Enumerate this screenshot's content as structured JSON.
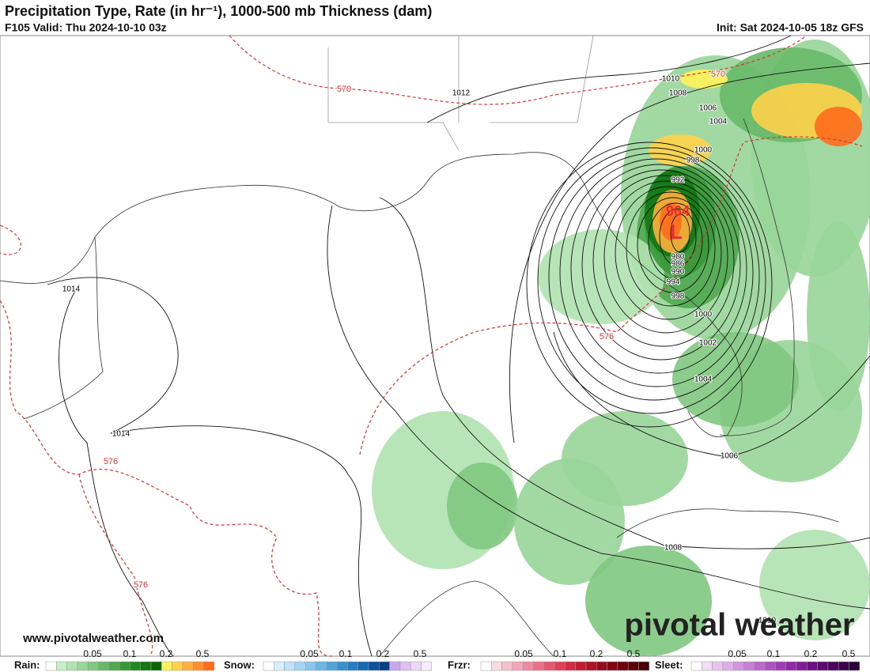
{
  "header": {
    "title": "Precipitation Type, Rate (in hr⁻¹), 1000-500 mb Thickness (dam)",
    "valid": "F105 Valid: Thu 2024-10-10 03z",
    "init": "Init: Sat 2024-10-05 18z GFS"
  },
  "isobar_labels": [
    "1012",
    "1010",
    "1008",
    "1006",
    "1004",
    "1000",
    "998",
    "992",
    "980",
    "986",
    "990",
    "994",
    "998",
    "1000",
    "1002",
    "1004",
    "1006",
    "1008",
    "1010",
    "1014",
    "1014"
  ],
  "low": {
    "pressure": "964",
    "symbol": "L"
  },
  "thickness_labels": [
    "570",
    "570",
    "576",
    "576",
    "576"
  ],
  "watermark": "pivotal weather",
  "url": "www.pivotalweather.com",
  "legend": [
    {
      "label": "Rain:",
      "ticks": [
        0.05,
        0.1,
        0.2,
        0.5
      ],
      "colors": [
        "#ffffff",
        "#c8eec8",
        "#b0e2b0",
        "#98d598",
        "#80c780",
        "#68b868",
        "#50a850",
        "#389838",
        "#228822",
        "#137713",
        "#0b660b",
        "#fff35a",
        "#ffd24a",
        "#ffb03c",
        "#ff8e2c",
        "#ff6c1c"
      ]
    },
    {
      "label": "Snow:",
      "ticks": [
        0.05,
        0.1,
        0.2,
        0.5
      ],
      "colors": [
        "#ffffff",
        "#d9eefb",
        "#c0e2f7",
        "#a5d4f2",
        "#89c5ec",
        "#6db5e4",
        "#52a3da",
        "#3a90cf",
        "#267cc2",
        "#1667b1",
        "#0b539c",
        "#053f86",
        "#c8a8e8",
        "#dcc0f0",
        "#ecd8f6",
        "#f6ecfb"
      ]
    },
    {
      "label": "Frzr:",
      "ticks": [
        0.05,
        0.1,
        0.2,
        0.5
      ],
      "colors": [
        "#ffffff",
        "#fadbe4",
        "#f6c1cf",
        "#f2a6b8",
        "#ee8ba0",
        "#ea7087",
        "#e55670",
        "#e03d58",
        "#d42a43",
        "#c21c31",
        "#ad1225",
        "#960b1b",
        "#800614",
        "#6b030e",
        "#580209",
        "#470106"
      ]
    },
    {
      "label": "Sleet:",
      "ticks": [
        0.05,
        0.1,
        0.2,
        0.5
      ],
      "colors": [
        "#ffffff",
        "#f3dcf5",
        "#e9c5ee",
        "#deaee6",
        "#d396de",
        "#c77fd5",
        "#bb68cb",
        "#ae52c0",
        "#a03db4",
        "#902ba6",
        "#7f1c96",
        "#6d1084",
        "#5b0871",
        "#4a045d",
        "#3a024a",
        "#2b0138"
      ]
    }
  ]
}
